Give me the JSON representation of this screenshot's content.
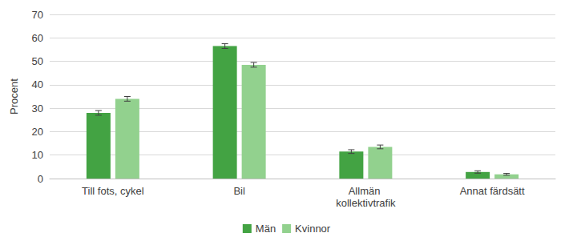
{
  "chart_data": {
    "type": "bar",
    "y_label": "Procent",
    "categories": [
      "Till fots, cykel",
      "Bil",
      "Allmän kollektivtrafik",
      "Annat färdsätt"
    ],
    "series": [
      {
        "name": "Män",
        "color": "#43a343",
        "values": [
          28,
          56.5,
          11.5,
          2.8
        ],
        "errors": [
          1.0,
          1.0,
          0.8,
          0.5
        ]
      },
      {
        "name": "Kvinnor",
        "color": "#92d18e",
        "values": [
          34,
          48.5,
          13.5,
          1.8
        ],
        "errors": [
          1.0,
          1.0,
          0.8,
          0.4
        ]
      }
    ],
    "ylim": [
      0,
      70
    ],
    "yticks": [
      0,
      10,
      20,
      30,
      40,
      50,
      60,
      70
    ],
    "grid": true,
    "legend": "bottom"
  }
}
